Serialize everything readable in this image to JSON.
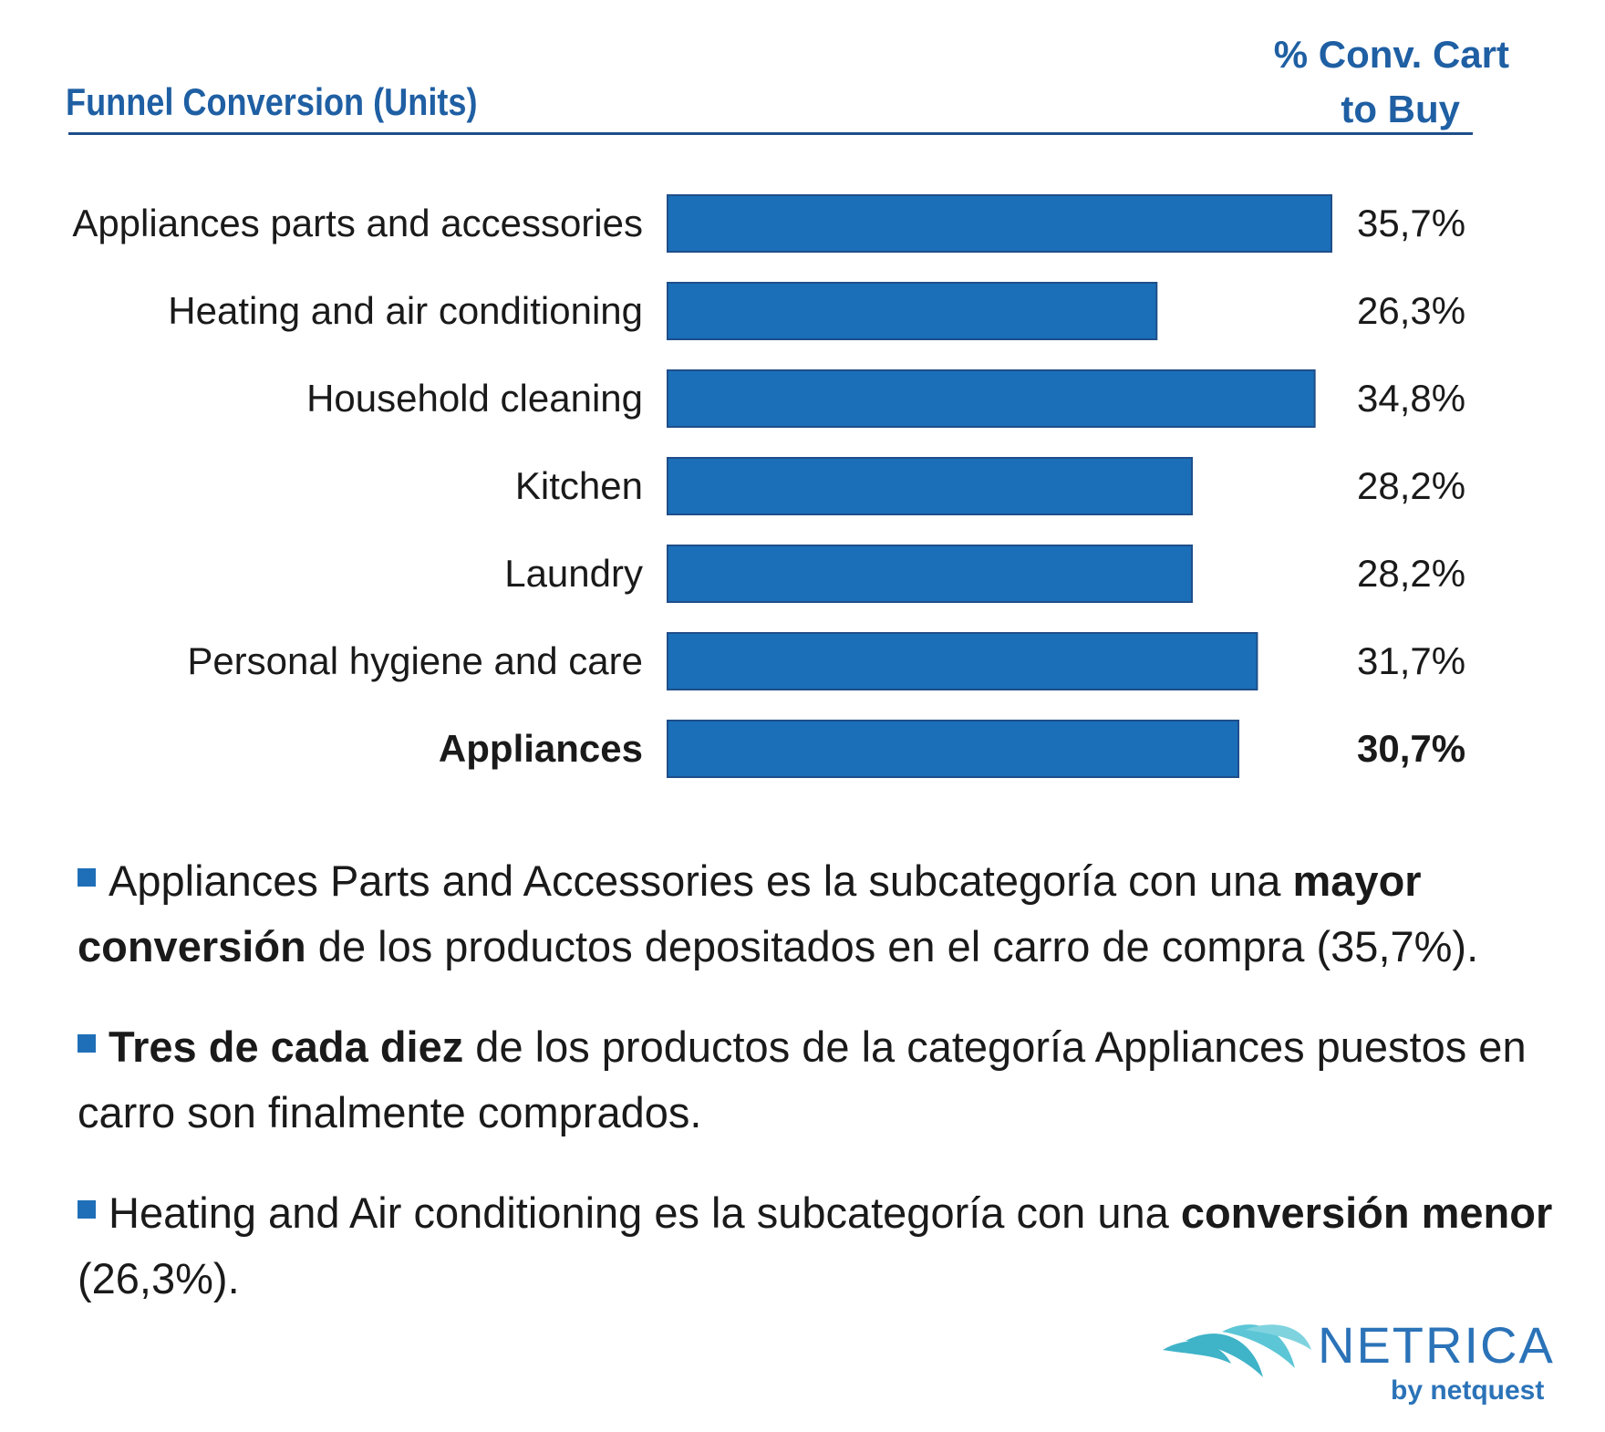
{
  "header": {
    "title": "Funnel Conversion (Units)",
    "column_line1": "% Conv. Cart",
    "column_line2": "to Buy"
  },
  "chart_data": {
    "type": "bar",
    "orientation": "horizontal",
    "categories": [
      "Appliances parts and accessories",
      "Heating and air conditioning",
      "Household cleaning",
      "Kitchen",
      "Laundry",
      "Personal hygiene and care",
      "Appliances"
    ],
    "values": [
      35.7,
      26.3,
      34.8,
      28.2,
      28.2,
      31.7,
      30.7
    ],
    "value_labels": [
      "35,7%",
      "26,3%",
      "34,8%",
      "28,2%",
      "28,2%",
      "31,7%",
      "30,7%"
    ],
    "bold_categories": [
      "Appliances"
    ],
    "title": "Funnel Conversion (Units)",
    "xlabel": "",
    "ylabel": "",
    "xlim": [
      0,
      35.7
    ],
    "bar_color": "#1a6fb8",
    "bar_edge_color": "#1f4e8a"
  },
  "bullets": [
    {
      "parts": [
        {
          "text": "Appliances Parts and Accessories es la subcategoría con una ",
          "bold": false
        },
        {
          "text": "mayor conversión",
          "bold": true
        },
        {
          "text": " de los productos depositados en el carro de compra (35,7%).",
          "bold": false
        }
      ]
    },
    {
      "parts": [
        {
          "text": "Tres de cada diez",
          "bold": true
        },
        {
          "text": " de los productos de la categoría Appliances puestos en carro son finalmente comprados.",
          "bold": false
        }
      ]
    },
    {
      "parts": [
        {
          "text": "Heating and Air conditioning es la subcategoría con una ",
          "bold": false
        },
        {
          "text": "conversión menor",
          "bold": true
        },
        {
          "text": " (26,3%).",
          "bold": false
        }
      ]
    }
  ],
  "logo": {
    "name": "NETRICA",
    "tagline": "by netquest",
    "color": "#2b73b8",
    "mark_color": "#3fb3c8"
  }
}
